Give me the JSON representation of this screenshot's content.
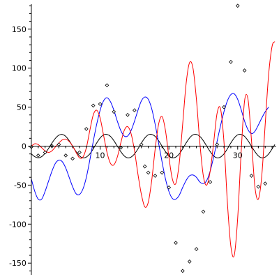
{
  "chart_data": {
    "type": "line",
    "title": "",
    "xlabel": "",
    "ylabel": "",
    "xlim": [
      -0.5,
      35.6
    ],
    "ylim": [
      -165,
      182
    ],
    "grid": false,
    "legend": "none",
    "x_ticks": [
      {
        "value": 10,
        "label": "10"
      },
      {
        "value": 20,
        "label": "20"
      },
      {
        "value": 30,
        "label": "30"
      }
    ],
    "y_ticks": [
      {
        "value": 150,
        "label": "150"
      },
      {
        "value": 100,
        "label": "100"
      },
      {
        "value": 50,
        "label": "50"
      },
      {
        "value": 0,
        "label": "0"
      },
      {
        "value": -50,
        "label": "-50"
      },
      {
        "value": -100,
        "label": "-100"
      },
      {
        "value": -150,
        "label": "-150"
      }
    ],
    "series": [
      {
        "color": "#000000",
        "points": [
          [
            0,
            -10
          ],
          [
            0.5,
            -13.5
          ],
          [
            1,
            -15
          ],
          [
            1.5,
            -13.5
          ],
          [
            2,
            -9
          ],
          [
            2.5,
            -3
          ],
          [
            3,
            4
          ],
          [
            3.5,
            10
          ],
          [
            4,
            14
          ],
          [
            4.5,
            15
          ],
          [
            5,
            12.5
          ],
          [
            5.5,
            7
          ],
          [
            6,
            0
          ],
          [
            6.5,
            -7
          ],
          [
            7,
            -12.5
          ],
          [
            7.5,
            -15
          ],
          [
            8,
            -14
          ],
          [
            8.5,
            -10
          ],
          [
            9,
            -3.5
          ],
          [
            9.5,
            4
          ],
          [
            10,
            10.5
          ],
          [
            10.5,
            14.5
          ],
          [
            11,
            15
          ],
          [
            11.5,
            12.5
          ],
          [
            12,
            7
          ],
          [
            12.5,
            0
          ],
          [
            13,
            -7
          ],
          [
            13.5,
            -12.5
          ],
          [
            14,
            -15
          ],
          [
            14.5,
            -14
          ],
          [
            15,
            -10
          ],
          [
            15.5,
            -3.5
          ],
          [
            16,
            4
          ],
          [
            16.5,
            10.5
          ],
          [
            17,
            14.5
          ],
          [
            17.5,
            15
          ],
          [
            18,
            12.5
          ],
          [
            18.5,
            7
          ],
          [
            19,
            0
          ],
          [
            19.5,
            -7
          ],
          [
            20,
            -12.5
          ],
          [
            20.5,
            -15
          ],
          [
            21,
            -14
          ],
          [
            21.5,
            -10
          ],
          [
            22,
            -3.5
          ],
          [
            22.5,
            4
          ],
          [
            23,
            10.5
          ],
          [
            23.5,
            14.5
          ],
          [
            24,
            15
          ],
          [
            24.5,
            12.5
          ],
          [
            25,
            7
          ],
          [
            25.5,
            0
          ],
          [
            26,
            -7
          ],
          [
            26.5,
            -12.5
          ],
          [
            27,
            -15
          ],
          [
            27.5,
            -14
          ],
          [
            28,
            -10
          ],
          [
            28.5,
            -3.5
          ],
          [
            29,
            4
          ],
          [
            29.5,
            10.5
          ],
          [
            30,
            14.5
          ],
          [
            30.5,
            15
          ],
          [
            31,
            12.5
          ],
          [
            31.5,
            7
          ],
          [
            32,
            0
          ],
          [
            32.5,
            -7
          ],
          [
            33,
            -12.5
          ],
          [
            33.5,
            -15
          ],
          [
            34,
            -14
          ],
          [
            34.5,
            -10
          ],
          [
            35,
            -3.5
          ],
          [
            35.4,
            2
          ]
        ]
      },
      {
        "color": "#0000ff",
        "points": [
          [
            0,
            -42
          ],
          [
            0.5,
            -58
          ],
          [
            1,
            -68
          ],
          [
            1.5,
            -68
          ],
          [
            2,
            -58
          ],
          [
            2.5,
            -45
          ],
          [
            3,
            -32
          ],
          [
            3.5,
            -22
          ],
          [
            4,
            -18
          ],
          [
            4.5,
            -20
          ],
          [
            5,
            -28
          ],
          [
            5.5,
            -40
          ],
          [
            6,
            -52
          ],
          [
            6.5,
            -61
          ],
          [
            7,
            -62
          ],
          [
            7.5,
            -55
          ],
          [
            8,
            -40
          ],
          [
            8.5,
            -18
          ],
          [
            9,
            6
          ],
          [
            9.5,
            28
          ],
          [
            10,
            46
          ],
          [
            10.5,
            58
          ],
          [
            11,
            62
          ],
          [
            11.5,
            57
          ],
          [
            12,
            46
          ],
          [
            12.5,
            32
          ],
          [
            13,
            20
          ],
          [
            13.5,
            13
          ],
          [
            14,
            13
          ],
          [
            14.5,
            20
          ],
          [
            15,
            32
          ],
          [
            15.5,
            46
          ],
          [
            16,
            58
          ],
          [
            16.5,
            63
          ],
          [
            17,
            60
          ],
          [
            17.5,
            48
          ],
          [
            18,
            28
          ],
          [
            18.5,
            4
          ],
          [
            19,
            -20
          ],
          [
            19.5,
            -42
          ],
          [
            20,
            -58
          ],
          [
            20.5,
            -67
          ],
          [
            21,
            -68
          ],
          [
            21.5,
            -63
          ],
          [
            22,
            -53
          ],
          [
            22.5,
            -44
          ],
          [
            23,
            -38
          ],
          [
            23.5,
            -37
          ],
          [
            24,
            -40
          ],
          [
            24.5,
            -46
          ],
          [
            25,
            -48
          ],
          [
            25.5,
            -44
          ],
          [
            26,
            -32
          ],
          [
            26.5,
            -14
          ],
          [
            27,
            6
          ],
          [
            27.5,
            26
          ],
          [
            28,
            44
          ],
          [
            28.5,
            58
          ],
          [
            29,
            66
          ],
          [
            29.5,
            67
          ],
          [
            30,
            60
          ],
          [
            30.5,
            47
          ],
          [
            31,
            32
          ],
          [
            31.5,
            21
          ],
          [
            32,
            16
          ],
          [
            32.5,
            19
          ],
          [
            33,
            27
          ],
          [
            33.5,
            36
          ],
          [
            34,
            44
          ],
          [
            34.5,
            50
          ]
        ]
      },
      {
        "color": "#ff0000",
        "points": [
          [
            0,
            0
          ],
          [
            0.5,
            3
          ],
          [
            1,
            2
          ],
          [
            1.5,
            -2
          ],
          [
            2,
            -6
          ],
          [
            2.5,
            -8
          ],
          [
            3,
            -6
          ],
          [
            3.5,
            -1
          ],
          [
            4,
            4
          ],
          [
            4.5,
            8
          ],
          [
            5,
            9
          ],
          [
            5.5,
            6
          ],
          [
            6,
            0
          ],
          [
            6.5,
            -8
          ],
          [
            7,
            -15
          ],
          [
            7.5,
            -14
          ],
          [
            8,
            -2
          ],
          [
            8.5,
            20
          ],
          [
            9,
            40
          ],
          [
            9.5,
            46
          ],
          [
            10,
            36
          ],
          [
            10.5,
            14
          ],
          [
            11,
            -8
          ],
          [
            11.5,
            -22
          ],
          [
            12,
            -24
          ],
          [
            12.5,
            -14
          ],
          [
            13,
            4
          ],
          [
            13.5,
            20
          ],
          [
            14,
            25
          ],
          [
            14.5,
            16
          ],
          [
            15,
            -6
          ],
          [
            15.5,
            -36
          ],
          [
            16,
            -62
          ],
          [
            16.5,
            -78
          ],
          [
            17,
            -72
          ],
          [
            17.5,
            -44
          ],
          [
            18,
            -4
          ],
          [
            18.5,
            28
          ],
          [
            19,
            38
          ],
          [
            19.5,
            20
          ],
          [
            20,
            -14
          ],
          [
            20.5,
            -42
          ],
          [
            21,
            -48
          ],
          [
            21.5,
            -22
          ],
          [
            22,
            28
          ],
          [
            22.5,
            80
          ],
          [
            23,
            107
          ],
          [
            23.5,
            100
          ],
          [
            24,
            60
          ],
          [
            24.5,
            4
          ],
          [
            25,
            -38
          ],
          [
            25.5,
            -50
          ],
          [
            26,
            -32
          ],
          [
            26.5,
            4
          ],
          [
            27,
            42
          ],
          [
            27.5,
            48
          ],
          [
            28,
            6
          ],
          [
            28.5,
            -72
          ],
          [
            29,
            -128
          ],
          [
            29.5,
            -140
          ],
          [
            30,
            -92
          ],
          [
            30.5,
            -8
          ],
          [
            31,
            58
          ],
          [
            31.5,
            60
          ],
          [
            32,
            8
          ],
          [
            32.5,
            -52
          ],
          [
            33,
            -68
          ],
          [
            33.5,
            -38
          ],
          [
            34,
            28
          ],
          [
            34.5,
            92
          ],
          [
            35,
            128
          ],
          [
            35.4,
            134
          ]
        ]
      }
    ],
    "scatter_points": [
      [
        0,
        -1
      ],
      [
        1,
        -12
      ],
      [
        2,
        -8
      ],
      [
        3,
        0
      ],
      [
        4,
        2
      ],
      [
        5,
        -12
      ],
      [
        6,
        -16
      ],
      [
        7,
        -8
      ],
      [
        8,
        22
      ],
      [
        9,
        52
      ],
      [
        10,
        54
      ],
      [
        11,
        78
      ],
      [
        12,
        44
      ],
      [
        13,
        -2
      ],
      [
        14,
        40
      ],
      [
        15,
        46
      ],
      [
        16,
        2
      ],
      [
        16.5,
        -26
      ],
      [
        17,
        -34
      ],
      [
        18,
        -38
      ],
      [
        19,
        -34
      ],
      [
        20,
        -53
      ],
      [
        21,
        -124
      ],
      [
        22,
        -160
      ],
      [
        23,
        -148
      ],
      [
        24,
        -132
      ],
      [
        25,
        -84
      ],
      [
        26,
        -46
      ],
      [
        27,
        2
      ],
      [
        28,
        50
      ],
      [
        29,
        108
      ],
      [
        30,
        180
      ],
      [
        31,
        97
      ],
      [
        32,
        -38
      ],
      [
        33,
        -52
      ],
      [
        34,
        -48
      ]
    ]
  }
}
